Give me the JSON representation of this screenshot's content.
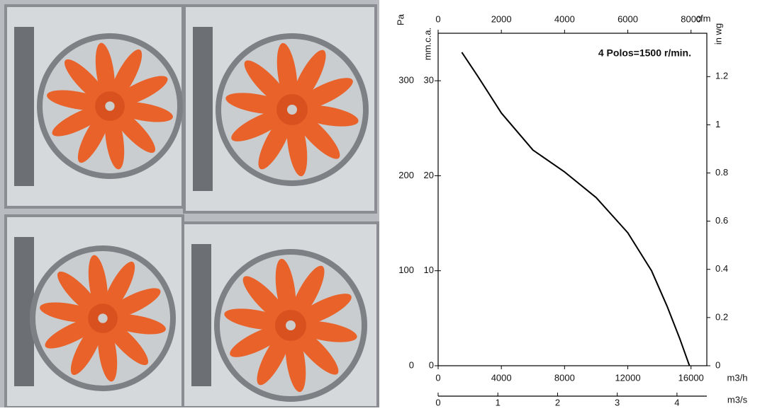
{
  "chart_data": {
    "type": "line",
    "annotation": "4 Polos=1500 r/min.",
    "xlabel": "m3/h",
    "xlim": [
      0,
      17000
    ],
    "xticks": [
      0,
      4000,
      8000,
      12000,
      16000
    ],
    "ylabel": "Pa",
    "ylim": [
      0,
      350
    ],
    "yticks": [
      0,
      100,
      200,
      300
    ],
    "y2label": "mm.c.a.",
    "y2lim": [
      0,
      35
    ],
    "y2ticks": [
      0,
      10,
      20,
      30
    ],
    "y3label": "in wg",
    "y3lim": [
      0,
      1.38
    ],
    "y3ticks": [
      0,
      0.2,
      0.4,
      0.6,
      0.8,
      1,
      1.2
    ],
    "x2label": "cfm",
    "x2lim": [
      0,
      8500
    ],
    "x2ticks": [
      0,
      2000,
      4000,
      6000,
      8000
    ],
    "x3label": "m3/s",
    "x3lim": [
      0,
      4.5
    ],
    "x3ticks": [
      0,
      1,
      2,
      3,
      4
    ],
    "x": [
      1500,
      2500,
      4000,
      6000,
      8000,
      10000,
      12000,
      13500,
      14500,
      15300,
      15900
    ],
    "series": [
      {
        "color": "#000000",
        "values": [
          330,
          305,
          266,
          227,
          204,
          177,
          140,
          100,
          62,
          28,
          0
        ]
      }
    ]
  }
}
